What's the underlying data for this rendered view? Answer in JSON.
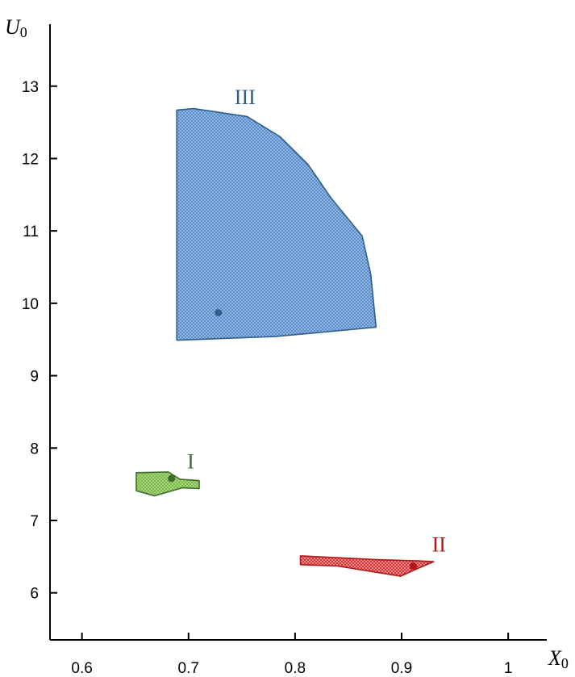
{
  "chart_data": {
    "type": "scatter",
    "x_axis": {
      "symbol": "X",
      "subscript": "0",
      "range": [
        0.57,
        1.04
      ],
      "ticks": [
        0.6,
        0.7,
        0.8,
        0.9,
        1.0
      ],
      "tick_labels": [
        "0.6",
        "0.7",
        "0.8",
        "0.9",
        "1"
      ]
    },
    "y_axis": {
      "symbol": "U",
      "subscript": "0",
      "range": [
        5.35,
        13.8
      ],
      "ticks": [
        6,
        7,
        8,
        9,
        10,
        11,
        12,
        13
      ],
      "tick_labels": [
        "6",
        "7",
        "8",
        "9",
        "10",
        "11",
        "12",
        "13"
      ]
    },
    "grid": false,
    "regions": [
      {
        "label": "III",
        "color": "#2e5f8a",
        "fill": "#6f9fd6",
        "label_at": [
          0.753,
          12.75
        ],
        "point": [
          0.728,
          9.87
        ],
        "polygon": [
          [
            0.689,
            12.67
          ],
          [
            0.705,
            12.69
          ],
          [
            0.755,
            12.58
          ],
          [
            0.786,
            12.3
          ],
          [
            0.812,
            11.92
          ],
          [
            0.834,
            11.45
          ],
          [
            0.863,
            10.93
          ],
          [
            0.871,
            10.4
          ],
          [
            0.876,
            9.67
          ],
          [
            0.781,
            9.54
          ],
          [
            0.689,
            9.49
          ]
        ]
      },
      {
        "label": "I",
        "color": "#3f6b2a",
        "fill": "#8cc75a",
        "label_at": [
          0.702,
          7.72
        ],
        "point": [
          0.684,
          7.58
        ],
        "polygon": [
          [
            0.651,
            7.66
          ],
          [
            0.681,
            7.67
          ],
          [
            0.692,
            7.57
          ],
          [
            0.71,
            7.55
          ],
          [
            0.71,
            7.44
          ],
          [
            0.694,
            7.45
          ],
          [
            0.668,
            7.34
          ],
          [
            0.651,
            7.41
          ]
        ]
      },
      {
        "label": "II",
        "color": "#b01818",
        "fill": "#e03030",
        "label_at": [
          0.935,
          6.57
        ],
        "point": [
          0.911,
          6.37
        ],
        "polygon": [
          [
            0.805,
            6.51
          ],
          [
            0.875,
            6.46
          ],
          [
            0.918,
            6.44
          ],
          [
            0.93,
            6.43
          ],
          [
            0.914,
            6.33
          ],
          [
            0.899,
            6.23
          ],
          [
            0.84,
            6.37
          ],
          [
            0.805,
            6.39
          ]
        ]
      }
    ]
  }
}
